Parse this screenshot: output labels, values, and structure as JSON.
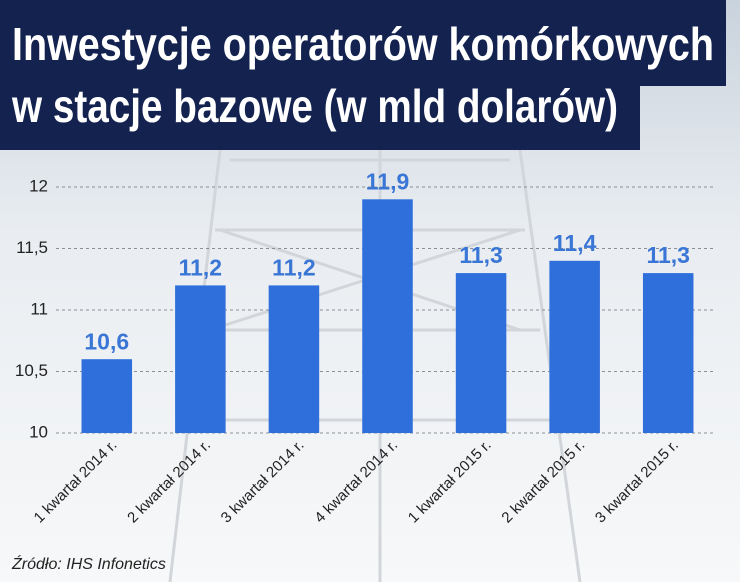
{
  "chart_data": {
    "type": "bar",
    "title": [
      "Inwestycje operatorów komórkowych",
      "w stacje bazowe (w mld dolarów)"
    ],
    "categories": [
      "1 kwartał 2014 r.",
      "2 kwartał 2014 r.",
      "3 kwartał 2014 r.",
      "4 kwartał 2014 r.",
      "1 kwartał 2015 r.",
      "2 kwartał 2015 r.",
      "3 kwartał 2015 r."
    ],
    "values": [
      10.6,
      11.2,
      11.2,
      11.9,
      11.3,
      11.4,
      11.3
    ],
    "value_labels": [
      "10,6",
      "11,2",
      "11,2",
      "11,9",
      "11,3",
      "11,4",
      "11,3"
    ],
    "color": "#2f6fdb",
    "ylim": [
      10,
      12
    ],
    "yticks": [
      10,
      {
        "value": 10.5,
        "label": "10,5"
      },
      11,
      {
        "value": 11.5,
        "label": "11,5"
      },
      12
    ],
    "grid": true,
    "source": "Źródło: IHS Infonetics"
  }
}
